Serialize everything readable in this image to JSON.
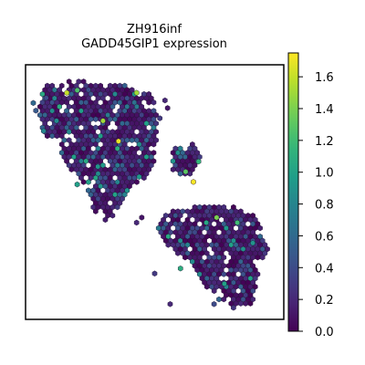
{
  "chart_data": {
    "type": "scatter",
    "subtype": "spatial-hexagon",
    "title": "ZH916inf",
    "subtitle": "GADD45GIP1 expression",
    "xlabel": "",
    "ylabel": "",
    "grid": false,
    "axis_ticks": false,
    "colormap": "viridis",
    "colorbar": {
      "min": 0.0,
      "max": 1.75,
      "ticks": [
        0.0,
        0.2,
        0.4,
        0.6,
        0.8,
        1.0,
        1.2,
        1.4,
        1.6
      ],
      "tick_labels": [
        "0.0",
        "0.2",
        "0.4",
        "0.6",
        "0.8",
        "1.0",
        "1.2",
        "1.4",
        "1.6"
      ]
    },
    "xlim": [
      0,
      100
    ],
    "ylim": [
      0,
      100
    ],
    "regions": [
      {
        "name": "upper-left tissue",
        "polygon": [
          [
            8,
            92
          ],
          [
            16,
            94
          ],
          [
            40,
            92
          ],
          [
            50,
            88
          ],
          [
            51,
            75
          ],
          [
            50,
            60
          ],
          [
            46,
            55
          ],
          [
            40,
            52
          ],
          [
            36,
            42
          ],
          [
            30,
            38
          ],
          [
            26,
            44
          ],
          [
            24,
            52
          ],
          [
            18,
            58
          ],
          [
            12,
            66
          ],
          [
            6,
            76
          ],
          [
            5,
            86
          ]
        ],
        "mean_value": 0.3
      },
      {
        "name": "middle small cluster",
        "polygon": [
          [
            57,
            68
          ],
          [
            66,
            69
          ],
          [
            68,
            64
          ],
          [
            65,
            57
          ],
          [
            58,
            56
          ],
          [
            56,
            62
          ]
        ],
        "mean_value": 0.4
      },
      {
        "name": "lower-right tissue",
        "polygon": [
          [
            54,
            42
          ],
          [
            60,
            43
          ],
          [
            70,
            45
          ],
          [
            80,
            45
          ],
          [
            90,
            40
          ],
          [
            94,
            28
          ],
          [
            90,
            18
          ],
          [
            88,
            6
          ],
          [
            80,
            4
          ],
          [
            74,
            8
          ],
          [
            68,
            14
          ],
          [
            64,
            22
          ],
          [
            58,
            26
          ],
          [
            52,
            32
          ],
          [
            50,
            36
          ]
        ],
        "mean_value": 0.3
      }
    ],
    "highlights": [
      {
        "x": 20,
        "y": 90,
        "value": 1.25
      },
      {
        "x": 16,
        "y": 89,
        "value": 1.6
      },
      {
        "x": 30,
        "y": 78,
        "value": 1.5
      },
      {
        "x": 36,
        "y": 70,
        "value": 1.7
      },
      {
        "x": 43,
        "y": 89,
        "value": 1.5
      },
      {
        "x": 67,
        "y": 62,
        "value": 1.15
      },
      {
        "x": 62,
        "y": 58,
        "value": 1.3
      },
      {
        "x": 65,
        "y": 54,
        "value": 1.75
      },
      {
        "x": 74,
        "y": 40,
        "value": 1.4
      },
      {
        "x": 82,
        "y": 38,
        "value": 1.2
      },
      {
        "x": 70,
        "y": 38,
        "value": 1.05
      },
      {
        "x": 60,
        "y": 20,
        "value": 1.1
      },
      {
        "x": 77,
        "y": 14,
        "value": 1.0
      },
      {
        "x": 20,
        "y": 53,
        "value": 1.0
      },
      {
        "x": 28,
        "y": 60,
        "value": 0.9
      },
      {
        "x": 44,
        "y": 56,
        "value": 0.95
      },
      {
        "x": 12,
        "y": 78,
        "value": 0.85
      },
      {
        "x": 88,
        "y": 30,
        "value": 0.9
      }
    ],
    "outliers": [
      {
        "x": 4,
        "y": 82,
        "value": 0.5
      },
      {
        "x": 3,
        "y": 85,
        "value": 0.6
      },
      {
        "x": 8,
        "y": 87,
        "value": 0.4
      },
      {
        "x": 54,
        "y": 86,
        "value": 0.2
      },
      {
        "x": 55,
        "y": 83,
        "value": 0.1
      },
      {
        "x": 52,
        "y": 79,
        "value": 0.3
      },
      {
        "x": 7,
        "y": 74,
        "value": 0.8
      },
      {
        "x": 43,
        "y": 38,
        "value": 0.2
      },
      {
        "x": 45,
        "y": 40,
        "value": 0.1
      },
      {
        "x": 50,
        "y": 18,
        "value": 0.3
      },
      {
        "x": 56,
        "y": 6,
        "value": 0.2
      },
      {
        "x": 73,
        "y": 6,
        "value": 0.4
      }
    ]
  }
}
